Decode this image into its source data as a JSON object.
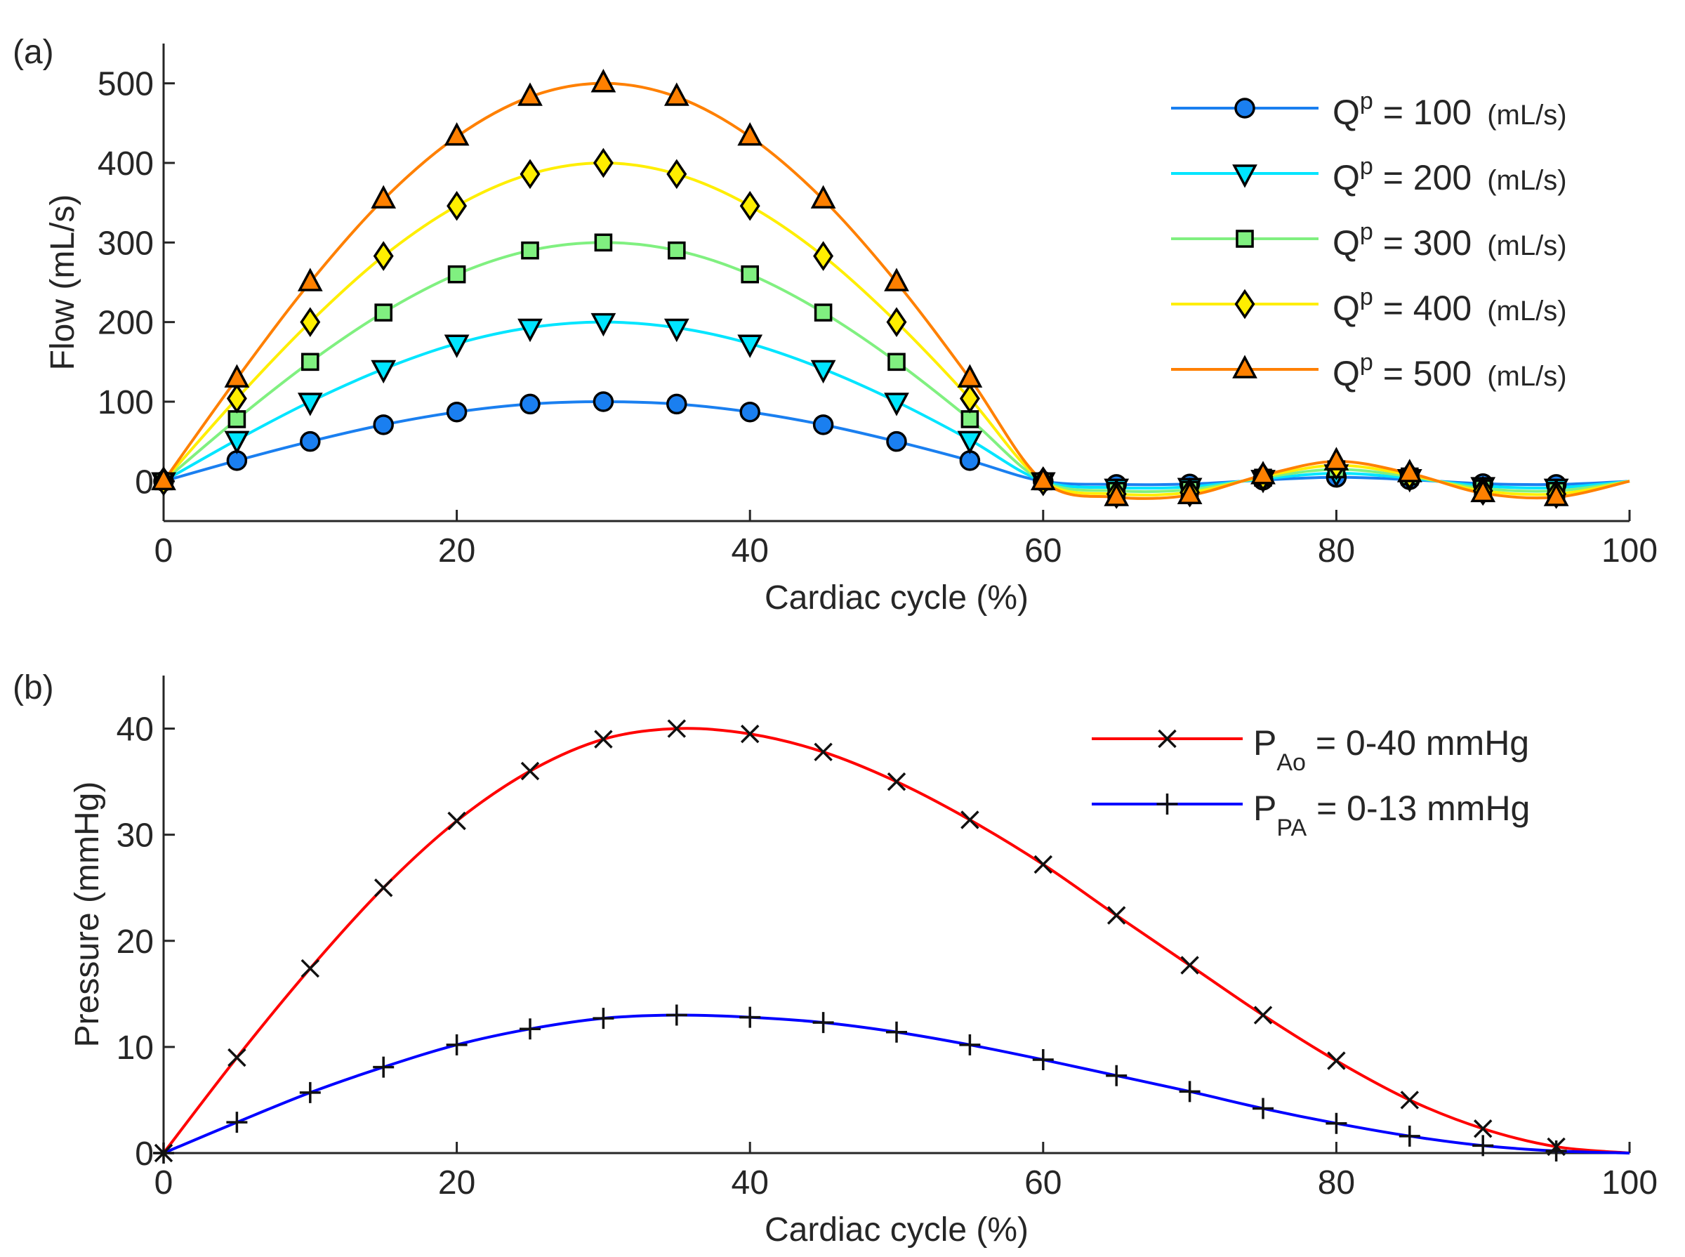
{
  "chart_data": [
    {
      "panel_label": "(a)",
      "type": "line",
      "xlabel": "Cardiac cycle (%)",
      "ylabel": "Flow (mL/s)",
      "xlim": [
        0,
        100
      ],
      "ylim": [
        -50,
        550
      ],
      "xticks": [
        0,
        20,
        40,
        60,
        80,
        100
      ],
      "yticks": [
        0,
        100,
        200,
        300,
        400,
        500
      ],
      "grid": false,
      "legend_position": "top-right",
      "x": [
        0,
        5,
        10,
        15,
        20,
        25,
        30,
        35,
        40,
        45,
        50,
        55,
        60,
        65,
        70,
        75,
        80,
        85,
        90,
        95,
        100
      ],
      "series": [
        {
          "name_main": "Q",
          "name_sup": "p",
          "name_rest": " = 100",
          "name_unit": "(mL/s)",
          "color": "#1a7ff0",
          "marker": "circle",
          "values": [
            0,
            26,
            50,
            71,
            87,
            97,
            100,
            97,
            87,
            71,
            50,
            26,
            0,
            -4,
            -3.5,
            1.5,
            5,
            2,
            -3,
            -4,
            0
          ]
        },
        {
          "name_main": "Q",
          "name_sup": "p",
          "name_rest": " = 200",
          "name_unit": "(mL/s)",
          "color": "#00e5ff",
          "marker": "triangle-down",
          "values": [
            0,
            52,
            100,
            141,
            173,
            193,
            200,
            193,
            173,
            141,
            100,
            52,
            0,
            -8,
            -7,
            3,
            10,
            4,
            -6,
            -8,
            0
          ]
        },
        {
          "name_main": "Q",
          "name_sup": "p",
          "name_rest": " = 300",
          "name_unit": "(mL/s)",
          "color": "#80f080",
          "marker": "square",
          "values": [
            0,
            78,
            150,
            212,
            260,
            290,
            300,
            290,
            260,
            212,
            150,
            78,
            0,
            -12,
            -10.5,
            4.5,
            15,
            6,
            -9,
            -12,
            0
          ]
        },
        {
          "name_main": "Q",
          "name_sup": "p",
          "name_rest": " = 400",
          "name_unit": "(mL/s)",
          "color": "#ffee00",
          "marker": "diamond",
          "values": [
            0,
            104,
            200,
            283,
            346,
            386,
            400,
            386,
            346,
            283,
            200,
            104,
            0,
            -16,
            -14,
            6,
            20,
            8,
            -12,
            -16,
            0
          ]
        },
        {
          "name_main": "Q",
          "name_sup": "p",
          "name_rest": " = 500",
          "name_unit": "(mL/s)",
          "color": "#ff8000",
          "marker": "triangle-up",
          "values": [
            0,
            129,
            250,
            354,
            433,
            483,
            500,
            483,
            433,
            354,
            250,
            129,
            0,
            -20,
            -17.5,
            7.5,
            25,
            10,
            -15,
            -20,
            0
          ]
        }
      ]
    },
    {
      "panel_label": "(b)",
      "type": "line",
      "xlabel": "Cardiac cycle (%)",
      "ylabel": "Pressure (mmHg)",
      "xlim": [
        0,
        100
      ],
      "ylim": [
        0,
        45
      ],
      "xticks": [
        0,
        20,
        40,
        60,
        80,
        100
      ],
      "yticks": [
        0,
        10,
        20,
        30,
        40
      ],
      "grid": false,
      "legend_position": "top-right",
      "x": [
        0,
        5,
        10,
        15,
        20,
        25,
        30,
        35,
        40,
        45,
        50,
        55,
        60,
        65,
        70,
        75,
        80,
        85,
        90,
        95,
        100
      ],
      "series": [
        {
          "name_main": "P",
          "name_sub": "Ao",
          "name_rest": " = 0-40 mmHg",
          "color": "#ff0000",
          "marker": "x",
          "values": [
            0,
            9,
            17.4,
            25,
            31.3,
            36,
            39,
            40,
            39.5,
            37.8,
            35,
            31.4,
            27.2,
            22.4,
            17.7,
            13,
            8.7,
            5,
            2.3,
            0.6,
            0
          ]
        },
        {
          "name_main": "P",
          "name_sub": "PA",
          "name_rest": " = 0-13 mmHg",
          "color": "#0000ff",
          "marker": "plus",
          "values": [
            0,
            2.9,
            5.7,
            8.1,
            10.2,
            11.7,
            12.7,
            13,
            12.8,
            12.3,
            11.4,
            10.2,
            8.8,
            7.3,
            5.8,
            4.2,
            2.8,
            1.6,
            0.7,
            0.2,
            0
          ]
        }
      ]
    }
  ]
}
